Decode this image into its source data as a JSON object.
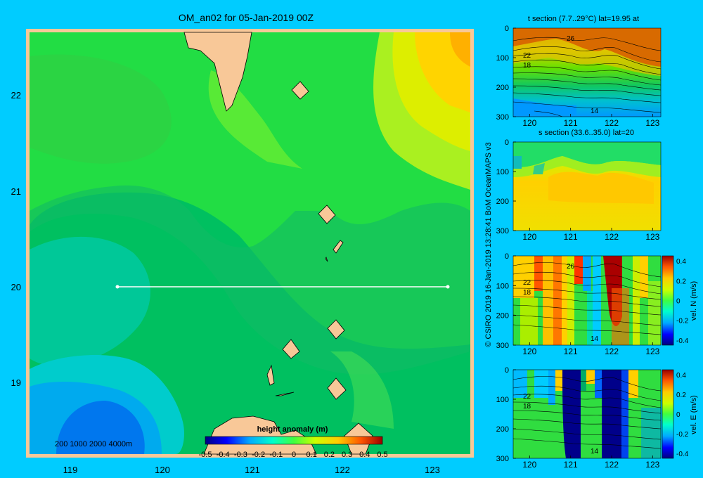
{
  "main_title": "OM_an02 for 05-Jan-2019 00Z",
  "credit": "© CSIRO 2019   16-Jan-2019 13:28:41 BoM OceanMAPS v3",
  "map": {
    "xticks": [
      "119",
      "120",
      "121",
      "122",
      "123"
    ],
    "yticks": [
      "22",
      "21",
      "20",
      "19"
    ],
    "depth_legend": "200  1000  2000  4000m",
    "colorbar_title": "height anomaly (m)",
    "colorbar_ticks": [
      "-0.5",
      "-0.4",
      "-0.3",
      "-0.2",
      "-0.1",
      "0",
      "0.1",
      "0.2",
      "0.3",
      "0.4",
      "0.5"
    ]
  },
  "panels": [
    {
      "title": "t section (7.7..29°C) lat=19.95 at",
      "contour_labels": [
        "26",
        "22",
        "18",
        "14"
      ]
    },
    {
      "title": "s section (33.6..35.0) lat=20",
      "contour_labels": []
    },
    {
      "title": "",
      "cbar_label": "vel. N (m/s)",
      "cbar_ticks": [
        "0.4",
        "0.2",
        "0",
        "-0.2",
        "-0.4"
      ],
      "contour_labels": [
        "26",
        "22",
        "18",
        "14"
      ]
    },
    {
      "title": "",
      "cbar_label": "vel. E (m/s)",
      "cbar_ticks": [
        "0.4",
        "0.2",
        "0",
        "-0.2",
        "-0.4"
      ],
      "contour_labels": [
        "22",
        "18",
        "14"
      ]
    }
  ],
  "section_axes": {
    "xticks": [
      "120",
      "121",
      "122",
      "123"
    ],
    "yticks": [
      "0",
      "100",
      "200",
      "300"
    ]
  },
  "chart_data": [
    {
      "type": "heatmap",
      "title": "OM_an02 for 05-Jan-2019 00Z",
      "xlim": [
        118.5,
        123.5
      ],
      "ylim": [
        18.3,
        22.7
      ],
      "x_ticks": [
        119,
        120,
        121,
        122,
        123
      ],
      "y_ticks": [
        19,
        20,
        21,
        22
      ],
      "colorbar": {
        "label": "height anomaly (m)",
        "range": [
          -0.5,
          0.5
        ]
      },
      "section_line": {
        "lat": 20,
        "lon": [
          119.5,
          123.2
        ]
      },
      "regions": [
        {
          "lon": 119.3,
          "lat": 18.7,
          "value": -0.3
        },
        {
          "lon": 119.7,
          "lat": 19.8,
          "value": -0.1
        },
        {
          "lon": 120.5,
          "lat": 21.6,
          "value": 0.15
        },
        {
          "lon": 121.5,
          "lat": 20.5,
          "value": 0.0
        },
        {
          "lon": 123.2,
          "lat": 22.3,
          "value": 0.4
        }
      ]
    },
    {
      "type": "heatmap",
      "title": "t section (7.7..29°C) lat=19.95 at",
      "xlim": [
        119.6,
        123.2
      ],
      "ylim": [
        300,
        0
      ],
      "value_range": [
        7.7,
        29
      ]
    },
    {
      "type": "heatmap",
      "title": "s section (33.6..35.0) lat=20",
      "xlim": [
        119.6,
        123.2
      ],
      "ylim": [
        300,
        0
      ],
      "value_range": [
        33.6,
        35.0
      ]
    },
    {
      "type": "heatmap",
      "xlim": [
        119.6,
        123.2
      ],
      "ylim": [
        300,
        0
      ],
      "colorbar": {
        "label": "vel. N (m/s)",
        "range": [
          -0.4,
          0.4
        ]
      }
    },
    {
      "type": "heatmap",
      "xlim": [
        119.6,
        123.2
      ],
      "ylim": [
        300,
        0
      ],
      "colorbar": {
        "label": "vel. E (m/s)",
        "range": [
          -0.4,
          0.4
        ]
      }
    }
  ]
}
